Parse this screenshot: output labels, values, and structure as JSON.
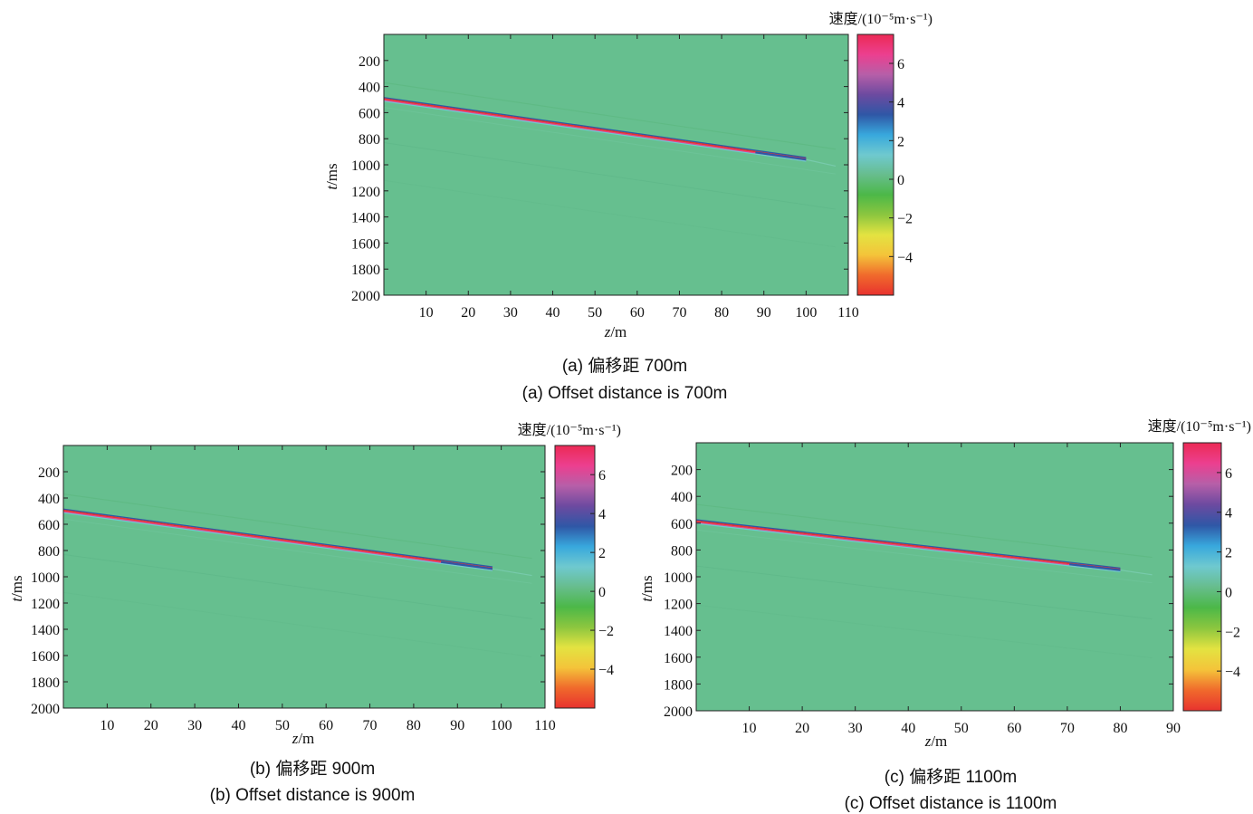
{
  "chart_data": [
    {
      "type": "heatmap",
      "panel_id": "a",
      "caption_cn": "(a) 偏移距 700m",
      "caption_en": "(a) Offset distance is 700m",
      "xlabel": "z/m",
      "ylabel": "t/ms",
      "xlim": [
        0,
        110
      ],
      "ylim": [
        2000,
        0
      ],
      "xticks": [
        10,
        20,
        30,
        40,
        50,
        60,
        70,
        80,
        90,
        100,
        110
      ],
      "yticks": [
        200,
        400,
        600,
        800,
        1000,
        1200,
        1400,
        1600,
        1800,
        2000
      ],
      "colorbar_title": "速度/(10⁻⁵m·s⁻¹)",
      "colorbar_ticks": [
        6,
        4,
        2,
        0,
        -2,
        -4
      ],
      "colorbar_range": [
        -6,
        7.5
      ],
      "wavefront": {
        "x_start": 0,
        "t_start": 500,
        "x_end": 100,
        "t_end": 960,
        "tail_x": 107,
        "tail_t": 1010
      },
      "background_color": "#66bf8f"
    },
    {
      "type": "heatmap",
      "panel_id": "b",
      "caption_cn": "(b) 偏移距 900m",
      "caption_en": "(b) Offset distance is 900m",
      "xlabel": "z/m",
      "ylabel": "t/ms",
      "xlim": [
        0,
        110
      ],
      "ylim": [
        2000,
        0
      ],
      "xticks": [
        10,
        20,
        30,
        40,
        50,
        60,
        70,
        80,
        90,
        100,
        110
      ],
      "yticks": [
        200,
        400,
        600,
        800,
        1000,
        1200,
        1400,
        1600,
        1800,
        2000
      ],
      "colorbar_title": "速度/(10⁻⁵m·s⁻¹)",
      "colorbar_ticks": [
        6,
        4,
        2,
        0,
        -2,
        -4
      ],
      "colorbar_range": [
        -6,
        7.5
      ],
      "wavefront": {
        "x_start": 0,
        "t_start": 500,
        "x_end": 98,
        "t_end": 940,
        "tail_x": 107,
        "tail_t": 990
      },
      "background_color": "#66bf8f"
    },
    {
      "type": "heatmap",
      "panel_id": "c",
      "caption_cn": "(c) 偏移距 1100m",
      "caption_en": "(c) Offset distance is 1100m",
      "xlabel": "z/m",
      "ylabel": "t/ms",
      "xlim": [
        0,
        90
      ],
      "ylim": [
        2000,
        0
      ],
      "xticks": [
        10,
        20,
        30,
        40,
        50,
        60,
        70,
        80,
        90
      ],
      "yticks": [
        200,
        400,
        600,
        800,
        1000,
        1200,
        1400,
        1600,
        1800,
        2000
      ],
      "colorbar_title": "速度/(10⁻⁵m·s⁻¹)",
      "colorbar_ticks": [
        6,
        4,
        2,
        0,
        -2,
        -4
      ],
      "colorbar_range": [
        -6,
        7.5
      ],
      "wavefront": {
        "x_start": 0,
        "t_start": 590,
        "x_end": 80,
        "t_end": 950,
        "tail_x": 86,
        "tail_t": 985
      },
      "background_color": "#66bf8f"
    }
  ],
  "colormap": [
    "#e8322e",
    "#f06a2c",
    "#f4c43a",
    "#e3e341",
    "#8cc63f",
    "#4cb848",
    "#67bd8d",
    "#6fc9cf",
    "#38a8dd",
    "#2f57a6",
    "#6c4aa0",
    "#b65fa8",
    "#ec3f8f",
    "#ec2a55"
  ]
}
